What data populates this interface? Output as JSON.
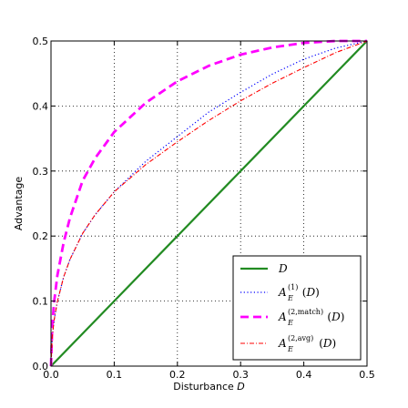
{
  "chart_data": {
    "type": "line",
    "xlabel": "Disturbance",
    "xlabel_var": "D",
    "ylabel": "Advantage",
    "xlim": [
      0.0,
      0.5
    ],
    "ylim": [
      0.0,
      0.5
    ],
    "xticks": [
      "0.0",
      "0.1",
      "0.2",
      "0.3",
      "0.4",
      "0.5"
    ],
    "yticks": [
      "0.0",
      "0.1",
      "0.2",
      "0.3",
      "0.4",
      "0.5"
    ],
    "grid": true,
    "legend_position": "lower-right",
    "series": [
      {
        "name": "D",
        "legend": {
          "main": "D",
          "sup": "",
          "sub": "",
          "arg": ""
        },
        "color": "#228B22",
        "style": "solid",
        "x": [
          0.0,
          0.1,
          0.2,
          0.3,
          0.4,
          0.5
        ],
        "y": [
          0.0,
          0.1,
          0.2,
          0.3,
          0.4,
          0.5
        ]
      },
      {
        "name": "A_E^(1)(D)",
        "legend": {
          "main": "A",
          "sup": "(1)",
          "sub": "E",
          "arg": "(D)"
        },
        "color": "#0000ff",
        "style": "dotted",
        "x": [
          0.0,
          0.002,
          0.005,
          0.01,
          0.02,
          0.03,
          0.05,
          0.07,
          0.1,
          0.15,
          0.2,
          0.25,
          0.3,
          0.35,
          0.4,
          0.45,
          0.5
        ],
        "y": [
          0.0,
          0.045,
          0.071,
          0.099,
          0.137,
          0.164,
          0.204,
          0.233,
          0.268,
          0.315,
          0.353,
          0.391,
          0.421,
          0.449,
          0.472,
          0.489,
          0.5
        ]
      },
      {
        "name": "A_E^(2,match)(D)",
        "legend": {
          "main": "A",
          "sup": "(2,match)",
          "sub": "E",
          "arg": "(D)"
        },
        "color": "#ff00ff",
        "style": "dashed",
        "x": [
          0.0,
          0.002,
          0.005,
          0.01,
          0.02,
          0.03,
          0.05,
          0.07,
          0.1,
          0.15,
          0.2,
          0.25,
          0.3,
          0.35,
          0.4,
          0.45,
          0.5
        ],
        "y": [
          0.0,
          0.063,
          0.099,
          0.139,
          0.19,
          0.228,
          0.285,
          0.32,
          0.36,
          0.405,
          0.438,
          0.462,
          0.479,
          0.49,
          0.497,
          0.5,
          0.5
        ]
      },
      {
        "name": "A_E^(2,avg)(D)",
        "legend": {
          "main": "A",
          "sup": "(2,avg)",
          "sub": "E",
          "arg": "(D)"
        },
        "color": "#ff0000",
        "style": "dashdot",
        "x": [
          0.0,
          0.002,
          0.005,
          0.01,
          0.02,
          0.03,
          0.05,
          0.07,
          0.1,
          0.15,
          0.2,
          0.25,
          0.3,
          0.35,
          0.4,
          0.45,
          0.5
        ],
        "y": [
          0.0,
          0.045,
          0.071,
          0.099,
          0.137,
          0.164,
          0.204,
          0.233,
          0.268,
          0.31,
          0.345,
          0.378,
          0.408,
          0.435,
          0.459,
          0.482,
          0.5
        ]
      }
    ]
  }
}
